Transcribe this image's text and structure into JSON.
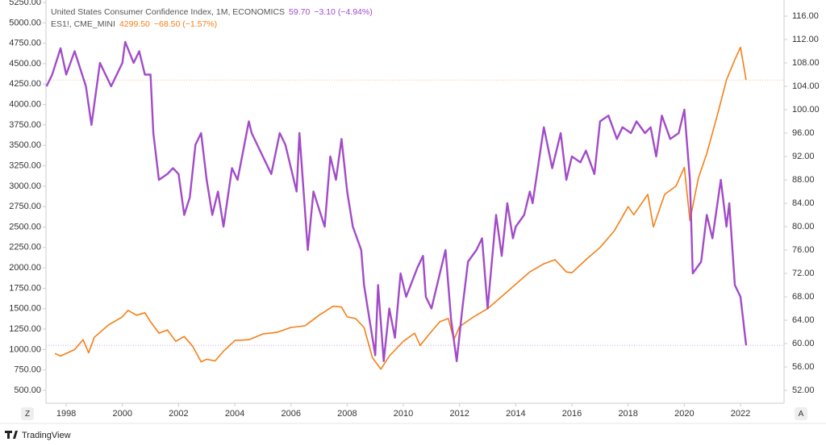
{
  "chart_data": {
    "type": "line",
    "legend": [
      {
        "name": "United States Consumer Confidence Index, 1M, ECONOMICS",
        "last": "59.70",
        "change": "−3.10 (−4.94%)"
      },
      {
        "name": "ES1!, CME_MINI",
        "last": "4299.50",
        "change": "−68.50 (−1.57%)"
      }
    ],
    "xlim": [
      1997.28,
      2023.55
    ],
    "xticks": [
      1998,
      2000,
      2002,
      2004,
      2006,
      2008,
      2010,
      2012,
      2014,
      2016,
      2018,
      2020,
      2022
    ],
    "ylim": [
      342,
      5280
    ],
    "yticks": [
      {
        "value": 500,
        "label": "500.00"
      },
      {
        "value": 750,
        "label": "750.00"
      },
      {
        "value": 1000,
        "label": "1000.00"
      },
      {
        "value": 1250,
        "label": "1250.00"
      },
      {
        "value": 1500,
        "label": "1500.00"
      },
      {
        "value": 1750,
        "label": "1750.00"
      },
      {
        "value": 2000,
        "label": "2000.00"
      },
      {
        "value": 2250,
        "label": "2250.00"
      },
      {
        "value": 2500,
        "label": "2500.00"
      },
      {
        "value": 2750,
        "label": "2750.00"
      },
      {
        "value": 3000,
        "label": "3000.00"
      },
      {
        "value": 3250,
        "label": "3250.00"
      },
      {
        "value": 3500,
        "label": "3500.00"
      },
      {
        "value": 3750,
        "label": "3750.00"
      },
      {
        "value": 4000,
        "label": "4000.00"
      },
      {
        "value": 4250,
        "label": "4250.00"
      },
      {
        "value": 4500,
        "label": "4500.00"
      },
      {
        "value": 4750,
        "label": "4750.00"
      },
      {
        "value": 5000,
        "label": "5000.00"
      },
      {
        "value": 5250,
        "label": "5250.00"
      }
    ],
    "y2lim": [
      49.8,
      118.76
    ],
    "y2ticks": [
      {
        "value": 52,
        "label": "52.00"
      },
      {
        "value": 56,
        "label": "56.00"
      },
      {
        "value": 60,
        "label": "60.00"
      },
      {
        "value": 64,
        "label": "64.00"
      },
      {
        "value": 68,
        "label": "68.00"
      },
      {
        "value": 72,
        "label": "72.00"
      },
      {
        "value": 76,
        "label": "76.00"
      },
      {
        "value": 80,
        "label": "80.00"
      },
      {
        "value": 84,
        "label": "84.00"
      },
      {
        "value": 88,
        "label": "88.00"
      },
      {
        "value": 92,
        "label": "92.00"
      },
      {
        "value": 96,
        "label": "96.00"
      },
      {
        "value": 100,
        "label": "100.00"
      },
      {
        "value": 104,
        "label": "104.00"
      },
      {
        "value": 108,
        "label": "108.00"
      },
      {
        "value": 112,
        "label": "112.00"
      },
      {
        "value": 116,
        "label": "116.00"
      }
    ],
    "series": [
      {
        "name": "United States Consumer Confidence Index, 1M, ECONOMICS",
        "color": "#a24bc9",
        "axis": "y2",
        "x": [
          1997.3,
          1997.5,
          1997.8,
          1998.0,
          1998.3,
          1998.7,
          1998.9,
          1999.2,
          1999.6,
          2000.0,
          2000.1,
          2000.4,
          2000.6,
          2000.8,
          2001.0,
          2001.1,
          2001.3,
          2001.6,
          2001.8,
          2002.0,
          2002.2,
          2002.4,
          2002.6,
          2002.8,
          2003.0,
          2003.2,
          2003.4,
          2003.6,
          2003.9,
          2004.1,
          2004.5,
          2004.6,
          2004.8,
          2005.3,
          2005.6,
          2005.8,
          2006.2,
          2006.3,
          2006.6,
          2006.8,
          2007.2,
          2007.4,
          2007.6,
          2007.8,
          2008.0,
          2008.2,
          2008.5,
          2008.6,
          2008.8,
          2009.0,
          2009.1,
          2009.3,
          2009.5,
          2009.7,
          2009.9,
          2010.1,
          2010.5,
          2010.7,
          2010.8,
          2011.0,
          2011.3,
          2011.5,
          2011.7,
          2011.9,
          2012.1,
          2012.3,
          2012.6,
          2012.8,
          2013.0,
          2013.3,
          2013.5,
          2013.7,
          2013.9,
          2014.0,
          2014.3,
          2014.5,
          2014.6,
          2015.0,
          2015.3,
          2015.6,
          2015.8,
          2016.0,
          2016.3,
          2016.5,
          2016.8,
          2017.0,
          2017.3,
          2017.6,
          2017.8,
          2018.1,
          2018.3,
          2018.6,
          2018.8,
          2019.0,
          2019.2,
          2019.5,
          2019.8,
          2020.0,
          2020.2,
          2020.3,
          2020.6,
          2020.8,
          2021.0,
          2021.3,
          2021.5,
          2021.6,
          2021.8,
          2022.0,
          2022.2
        ],
        "values": [
          104,
          106,
          110.5,
          106,
          110,
          104,
          97.4,
          108,
          104,
          108,
          111.6,
          108,
          110,
          106,
          106,
          96,
          88,
          89,
          90,
          89,
          82,
          85,
          94,
          96,
          88,
          82,
          86,
          80,
          90,
          88,
          98,
          96,
          94,
          89,
          96,
          94,
          86,
          96,
          76,
          86,
          80,
          92,
          88,
          95,
          86,
          80,
          76,
          70,
          64,
          58,
          70,
          57,
          66,
          61,
          72,
          68,
          73,
          75,
          68,
          66,
          72,
          76,
          64,
          57,
          66,
          74,
          76,
          78,
          66,
          82,
          75,
          84,
          78,
          80,
          82,
          86,
          84,
          97,
          90,
          96,
          88,
          92,
          91,
          93,
          89,
          98,
          99,
          95,
          97,
          96,
          98,
          96,
          97,
          92,
          99,
          95,
          96,
          100,
          88,
          72,
          74,
          82,
          78,
          88,
          80,
          84,
          70,
          68,
          59.7
        ]
      },
      {
        "name": "ES1!, CME_MINI",
        "color": "#f57f17",
        "axis": "y",
        "x": [
          1997.6,
          1997.8,
          1998.3,
          1998.6,
          1998.8,
          1999.0,
          1999.5,
          2000.0,
          2000.2,
          2000.5,
          2000.8,
          2001.0,
          2001.3,
          2001.6,
          2001.9,
          2002.2,
          2002.5,
          2002.8,
          2003.0,
          2003.3,
          2003.6,
          2004.0,
          2004.5,
          2005.0,
          2005.5,
          2006.0,
          2006.5,
          2007.0,
          2007.5,
          2007.8,
          2008.0,
          2008.3,
          2008.6,
          2008.9,
          2009.2,
          2009.5,
          2010.0,
          2010.4,
          2010.6,
          2010.9,
          2011.3,
          2011.6,
          2011.8,
          2012.0,
          2012.5,
          2013.0,
          2013.5,
          2014.0,
          2014.5,
          2015.0,
          2015.4,
          2015.8,
          2016.0,
          2016.5,
          2017.0,
          2017.5,
          2018.0,
          2018.2,
          2018.7,
          2018.9,
          2019.3,
          2019.7,
          2020.0,
          2020.2,
          2020.5,
          2020.8,
          2021.2,
          2021.5,
          2021.8,
          2022.0,
          2022.2
        ],
        "values": [
          952,
          920,
          1000,
          1120,
          960,
          1150,
          1300,
          1400,
          1480,
          1420,
          1450,
          1340,
          1200,
          1240,
          1100,
          1160,
          1040,
          850,
          880,
          860,
          980,
          1110,
          1120,
          1190,
          1210,
          1270,
          1290,
          1420,
          1530,
          1520,
          1400,
          1380,
          1270,
          900,
          760,
          920,
          1100,
          1200,
          1050,
          1180,
          1340,
          1380,
          1120,
          1280,
          1400,
          1500,
          1650,
          1800,
          1950,
          2050,
          2100,
          1950,
          1940,
          2100,
          2250,
          2450,
          2750,
          2650,
          2900,
          2500,
          2900,
          3000,
          3230,
          2580,
          3100,
          3400,
          3900,
          4300,
          4550,
          4700,
          4300
        ]
      }
    ]
  }
}
